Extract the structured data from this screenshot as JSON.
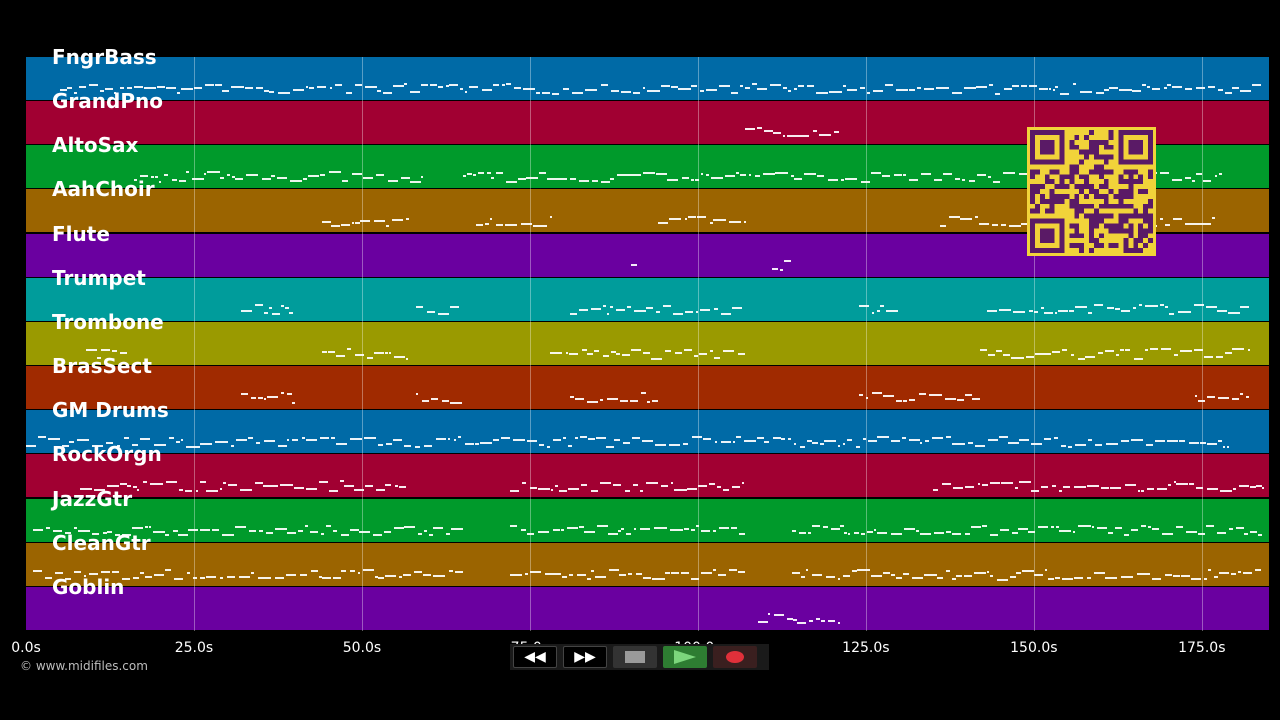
{
  "tracks": [
    {
      "name": "FngrBass",
      "color": "#006aa6"
    },
    {
      "name": "GrandPno",
      "color": "#a10032"
    },
    {
      "name": "AltoSax",
      "color": "#009a2b"
    },
    {
      "name": "AahChoir",
      "color": "#9b6400"
    },
    {
      "name": "Flute",
      "color": "#6a00a0"
    },
    {
      "name": "Trumpet",
      "color": "#009c9b"
    },
    {
      "name": "Trombone",
      "color": "#9a9a00"
    },
    {
      "name": "BrasSect",
      "color": "#a02a00"
    },
    {
      "name": "GM Drums",
      "color": "#006aa6"
    },
    {
      "name": "RockOrgn",
      "color": "#a10032"
    },
    {
      "name": "JazzGtr",
      "color": "#009a2b"
    },
    {
      "name": "CleanGtr",
      "color": "#9b6400"
    },
    {
      "name": "Goblin",
      "color": "#6a00a0"
    }
  ],
  "time_axis": {
    "ticks": [
      "0.0s",
      "25.0s",
      "50.0s",
      "75.0s",
      "100.0s",
      "125.0s",
      "150.0s",
      "175.0s"
    ],
    "tick_values": [
      0,
      25,
      50,
      75,
      100,
      125,
      150,
      175
    ],
    "max_seconds": 185
  },
  "copyright": "© www.midifiles.com",
  "transport": {
    "rewind_icon": "rewind-icon",
    "fast_forward_icon": "fast-forward-icon",
    "stop_icon": "stop-icon",
    "play_icon": "play-icon",
    "record_icon": "record-icon"
  },
  "qr_code": {
    "color": "#f1d33a",
    "module_color": "#5a1a66"
  },
  "note_color": "#ffffff"
}
